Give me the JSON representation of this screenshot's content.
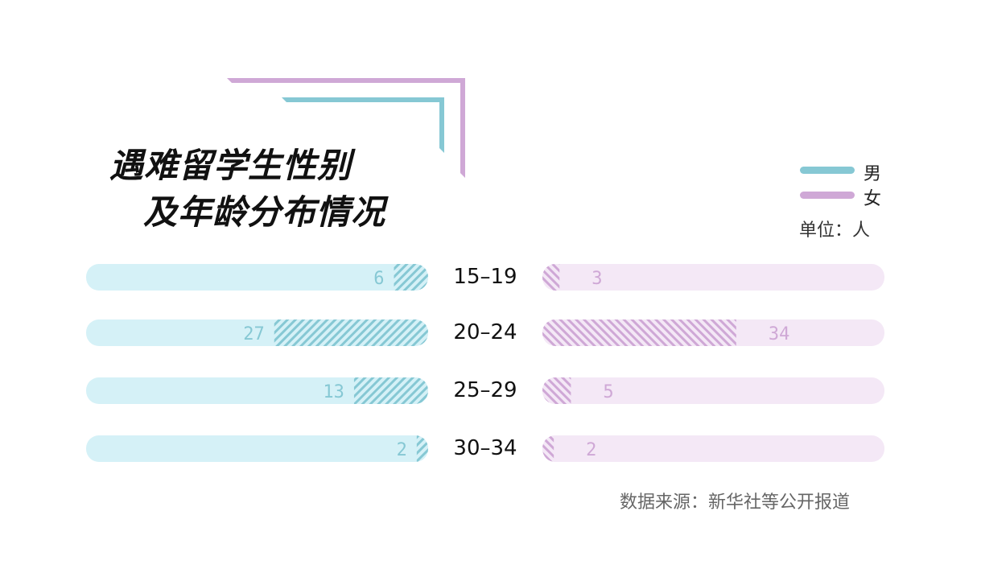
{
  "title": {
    "line1": "遇难留学生性别",
    "line2": "及年龄分布情况"
  },
  "legend": [
    {
      "label": "男",
      "color": "#86c8d4"
    },
    {
      "label": "女",
      "color": "#cfa8d6"
    }
  ],
  "unit": "单位：人",
  "source": "数据来源：新华社等公开报道",
  "colors": {
    "male_track": "#d5f1f7",
    "male_fill": "#86c8d4",
    "female_track": "#f4e8f6",
    "female_fill": "#cfa8d6",
    "deco_purple": "#cfa8d6",
    "deco_teal": "#86c8d4"
  },
  "chart_data": {
    "type": "bar",
    "categories": [
      "15–19",
      "20–24",
      "25–29",
      "30–34"
    ],
    "series": [
      {
        "name": "男",
        "values": [
          6,
          27,
          13,
          2
        ]
      },
      {
        "name": "女",
        "values": [
          3,
          34,
          5,
          2
        ]
      }
    ],
    "xlim": [
      0,
      60
    ]
  }
}
